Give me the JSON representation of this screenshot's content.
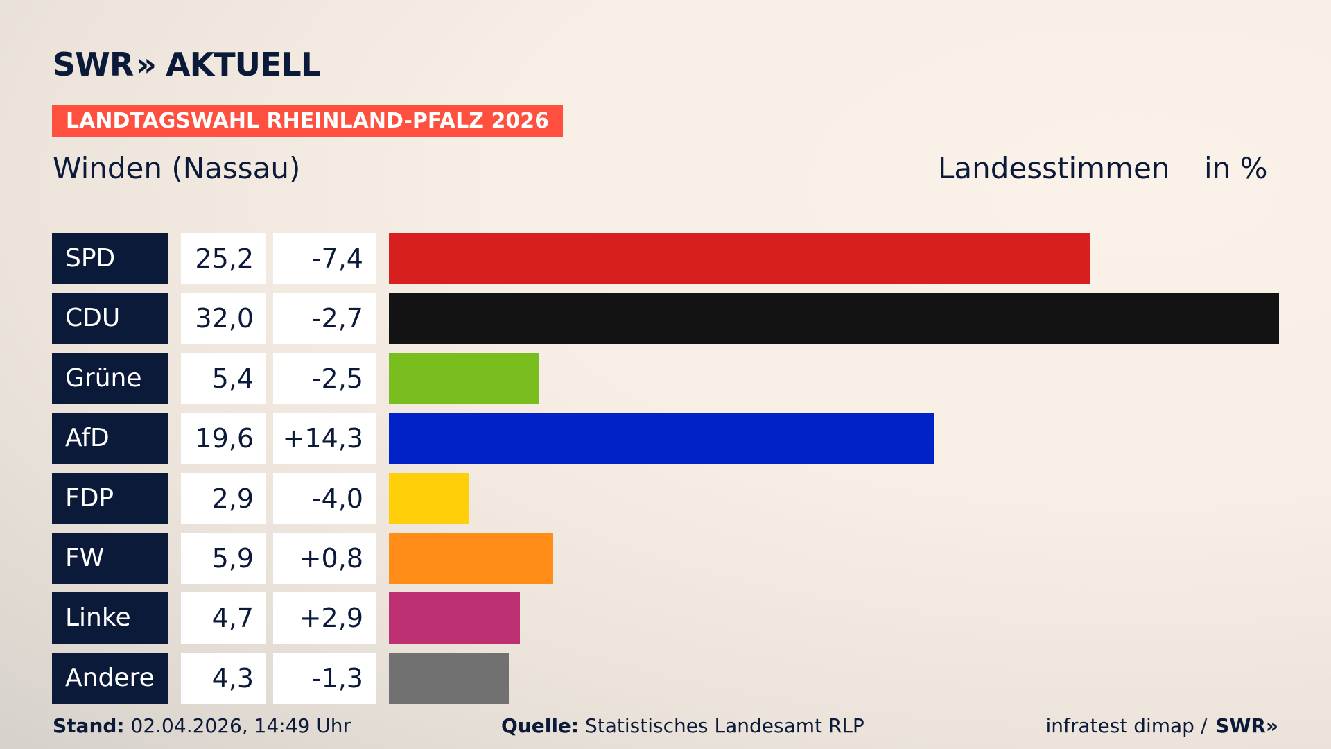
{
  "header": {
    "logo_text": "SWR",
    "logo_chevrons": "»",
    "logo_suffix": "AKTUELL",
    "election_label": "LANDTAGSWAHL RHEINLAND-PFALZ 2026",
    "region": "Winden (Nassau)",
    "vote_type": "Landesstimmen",
    "unit": "in %"
  },
  "colors": {
    "navy": "#0c1a3a",
    "badge": "#ff4f3f"
  },
  "chart_data": {
    "type": "bar",
    "orientation": "horizontal",
    "title": "Winden (Nassau)",
    "xlabel": "",
    "ylabel": "",
    "xlim": [
      0,
      32.0
    ],
    "grid": false,
    "legend": "none",
    "categories": [
      "SPD",
      "CDU",
      "Grüne",
      "AfD",
      "FDP",
      "FW",
      "Linke",
      "Andere"
    ],
    "values": [
      25.2,
      32.0,
      5.4,
      19.6,
      2.9,
      5.9,
      4.7,
      4.3
    ],
    "value_labels": [
      "25,2",
      "32,0",
      "5,4",
      "19,6",
      "2,9",
      "5,9",
      "4,7",
      "4,3"
    ],
    "change_labels": [
      "-7,4",
      "-2,7",
      "-2,5",
      "+14,3",
      "-4,0",
      "+0,8",
      "+2,9",
      "-1,3"
    ],
    "changes": [
      -7.4,
      -2.7,
      -2.5,
      14.3,
      -4.0,
      0.8,
      2.9,
      -1.3
    ],
    "bar_colors": [
      "#d81f1f",
      "#131313",
      "#7abd1f",
      "#0022c6",
      "#ffcf0a",
      "#ff8d17",
      "#bd3172",
      "#717171"
    ]
  },
  "footer": {
    "stand_label": "Stand:",
    "stand_value": "02.04.2026, 14:49 Uhr",
    "source_label": "Quelle:",
    "source_value": "Statistisches Landesamt RLP",
    "credit": "infratest dimap /",
    "credit_logo": "SWR»"
  }
}
